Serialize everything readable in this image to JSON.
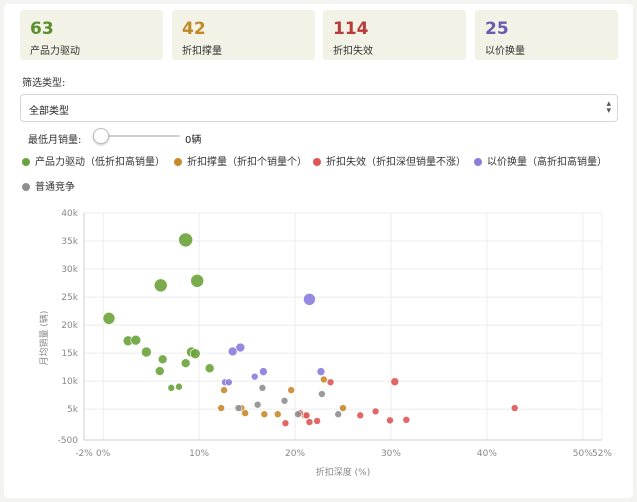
{
  "stats": [
    {
      "value": "63",
      "label": "产品力驱动",
      "color": "#5a8f2a"
    },
    {
      "value": "42",
      "label": "折扣撑量",
      "color": "#c08a2a"
    },
    {
      "value": "114",
      "label": "折扣失效",
      "color": "#b83a3a"
    },
    {
      "value": "25",
      "label": "以价换量",
      "color": "#6a5ab0"
    }
  ],
  "filter": {
    "label": "筛选类型:",
    "selected": "全部类型"
  },
  "min_sales": {
    "label": "最低月销量:",
    "value": "0辆",
    "fraction": 0
  },
  "legend": [
    {
      "label": "产品力驱动（低折扣高销量）",
      "color": "#6aa33a"
    },
    {
      "label": "折扣撑量（折扣个销量个）",
      "color": "#c8892a"
    },
    {
      "label": "折扣失效（折扣深但销量不涨）",
      "color": "#e05555"
    },
    {
      "label": "以价换量（高折扣高销量）",
      "color": "#8a7ddc"
    },
    {
      "label": "普通竞争",
      "color": "#8f8f8f"
    }
  ],
  "chart_data": {
    "type": "scatter",
    "xlabel": "折扣深度 (%)",
    "ylabel": "月均销量 (辆)",
    "xlim": [
      -2,
      52
    ],
    "ylim": [
      -500,
      40000
    ],
    "x_ticks": [
      {
        "v": -2,
        "label": "-2%"
      },
      {
        "v": 0,
        "label": "0%"
      },
      {
        "v": 10,
        "label": "10%"
      },
      {
        "v": 20,
        "label": "20%"
      },
      {
        "v": 30,
        "label": "30%"
      },
      {
        "v": 40,
        "label": "40%"
      },
      {
        "v": 50,
        "label": "50%"
      },
      {
        "v": 52,
        "label": "52%"
      }
    ],
    "y_ticks": [
      {
        "v": -500,
        "label": "-500"
      },
      {
        "v": 5000,
        "label": "5k"
      },
      {
        "v": 10000,
        "label": "10k"
      },
      {
        "v": 15000,
        "label": "15k"
      },
      {
        "v": 20000,
        "label": "20k"
      },
      {
        "v": 25000,
        "label": "25k"
      },
      {
        "v": 30000,
        "label": "30k"
      },
      {
        "v": 35000,
        "label": "35k"
      },
      {
        "v": 40000,
        "label": "40k"
      }
    ],
    "grid": true,
    "series": [
      {
        "name": "产品力驱动（低折扣高销量）",
        "color": "#6aa33a",
        "points": [
          [
            0.6,
            21200,
            6
          ],
          [
            2.6,
            17200,
            5
          ],
          [
            3.4,
            17300,
            5
          ],
          [
            4.5,
            15200,
            5
          ],
          [
            6.0,
            27100,
            6.5
          ],
          [
            8.6,
            35200,
            7
          ],
          [
            9.8,
            27900,
            6.5
          ],
          [
            9.2,
            15200,
            5
          ],
          [
            9.6,
            14900,
            5
          ],
          [
            6.2,
            13900,
            4.5
          ],
          [
            8.6,
            13200,
            4.5
          ],
          [
            5.9,
            11800,
            4.5
          ],
          [
            11.1,
            12300,
            4.5
          ],
          [
            7.1,
            8800,
            3.5
          ],
          [
            7.9,
            9000,
            3.5
          ]
        ]
      },
      {
        "name": "折扣撑量（折扣个销量个）",
        "color": "#c8892a",
        "points": [
          [
            12.3,
            5200,
            3.5
          ],
          [
            12.6,
            8400,
            3.5
          ],
          [
            14.4,
            5200,
            3.5
          ],
          [
            14.8,
            4300,
            3.5
          ],
          [
            16.8,
            4100,
            3.5
          ],
          [
            18.2,
            4100,
            3.5
          ],
          [
            19.6,
            8400,
            3.5
          ],
          [
            21.0,
            3900,
            3.5
          ],
          [
            23.0,
            10300,
            3.5
          ],
          [
            25.0,
            5200,
            3.5
          ]
        ]
      },
      {
        "name": "折扣失效（折扣深但销量不涨）",
        "color": "#e05555",
        "points": [
          [
            20.5,
            4300,
            3.5
          ],
          [
            21.2,
            3900,
            3.5
          ],
          [
            21.5,
            2700,
            3.5
          ],
          [
            22.3,
            2900,
            3.5
          ],
          [
            19.0,
            2500,
            3.5
          ],
          [
            23.7,
            9800,
            3.5
          ],
          [
            26.8,
            3900,
            3.5
          ],
          [
            28.4,
            4600,
            3.5
          ],
          [
            29.9,
            3000,
            3.5
          ],
          [
            30.4,
            9900,
            4
          ],
          [
            31.6,
            3100,
            3.5
          ],
          [
            42.9,
            5200,
            3.5
          ]
        ]
      },
      {
        "name": "以价换量（高折扣高销量）",
        "color": "#8a7ddc",
        "points": [
          [
            13.5,
            15300,
            4.5
          ],
          [
            14.3,
            16000,
            4.5
          ],
          [
            12.7,
            9800,
            3.5
          ],
          [
            13.1,
            9800,
            3.5
          ],
          [
            15.8,
            10800,
            3.5
          ],
          [
            16.7,
            11700,
            4
          ],
          [
            21.5,
            24600,
            6
          ],
          [
            22.7,
            11700,
            4
          ]
        ]
      },
      {
        "name": "普通竞争",
        "color": "#8f8f8f",
        "points": [
          [
            14.1,
            5200,
            3.5
          ],
          [
            16.1,
            5800,
            3.5
          ],
          [
            16.6,
            8800,
            3.5
          ],
          [
            18.9,
            6500,
            3.5
          ],
          [
            20.3,
            4100,
            3.5
          ],
          [
            22.8,
            7700,
            3.5
          ],
          [
            24.5,
            4100,
            3.5
          ]
        ]
      }
    ]
  }
}
